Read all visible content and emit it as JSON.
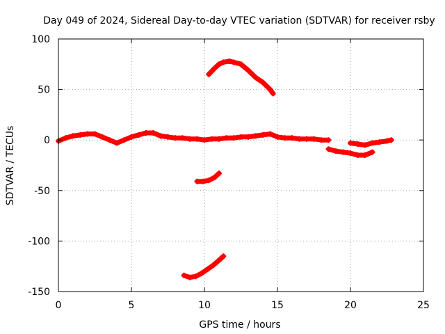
{
  "chart_data": {
    "type": "scatter",
    "title": "Day 049 of 2024, Sidereal Day-to-day VTEC variation (SDTVAR) for receiver rsby",
    "xlabel": "GPS time / hours",
    "ylabel": "SDTVAR / TECUs",
    "xlim": [
      0,
      25
    ],
    "ylim": [
      -150,
      100
    ],
    "xticks": [
      0,
      5,
      10,
      15,
      20,
      25
    ],
    "yticks": [
      -150,
      -100,
      -50,
      0,
      50,
      100
    ],
    "xtick_labels": [
      "0",
      "5",
      "10",
      "15",
      "20",
      "25"
    ],
    "ytick_labels": [
      "-150",
      "-100",
      "-50",
      "0",
      "50",
      "100"
    ],
    "grid": true,
    "marker": "plus",
    "series": [
      {
        "name": "main-near-zero",
        "color": "#ff0000",
        "x": [
          0,
          0.5,
          1,
          1.5,
          2,
          2.5,
          3,
          3.5,
          4,
          4.5,
          5,
          5.5,
          6,
          6.5,
          7,
          7.5,
          8,
          8.5,
          9,
          9.5,
          10,
          10.5,
          11,
          11.5,
          12,
          12.5,
          13,
          13.5,
          14,
          14.5,
          15,
          15.5,
          16,
          16.5,
          17,
          17.5,
          18,
          18.5
        ],
        "y": [
          -1,
          2,
          4,
          5,
          6,
          6,
          3,
          0,
          -3,
          0,
          3,
          5,
          7,
          7,
          4,
          3,
          2,
          2,
          1,
          1,
          0,
          1,
          1,
          2,
          2,
          3,
          3,
          4,
          5,
          6,
          3,
          2,
          2,
          1,
          1,
          1,
          0,
          0
        ]
      },
      {
        "name": "late-segment",
        "color": "#ff0000",
        "x": [
          18.5,
          19,
          19.5,
          20,
          20.5,
          21,
          21.5
        ],
        "y": [
          -9,
          -11,
          -12,
          -13,
          -15,
          -15,
          -12
        ]
      },
      {
        "name": "late-recovery",
        "color": "#ff0000",
        "x": [
          20,
          20.5,
          21,
          21.5,
          22,
          22.5,
          22.8
        ],
        "y": [
          -3,
          -4,
          -5,
          -3,
          -2,
          -1,
          0
        ]
      },
      {
        "name": "upper-arc",
        "color": "#ff0000",
        "x": [
          10.3,
          10.7,
          11,
          11.3,
          11.7,
          12,
          12.5,
          13,
          13.5,
          14,
          14.5,
          14.7
        ],
        "y": [
          65,
          71,
          75,
          77,
          78,
          77,
          75,
          69,
          62,
          57,
          50,
          46
        ]
      },
      {
        "name": "minus-forty-segment",
        "color": "#ff0000",
        "x": [
          9.5,
          9.9,
          10.3,
          10.7,
          11
        ],
        "y": [
          -41,
          -41,
          -40,
          -37,
          -33
        ]
      },
      {
        "name": "lower-arc",
        "color": "#ff0000",
        "x": [
          8.6,
          9,
          9.4,
          9.8,
          10.2,
          10.6,
          11,
          11.3
        ],
        "y": [
          -134,
          -136,
          -135,
          -132,
          -128,
          -124,
          -119,
          -115
        ]
      }
    ]
  }
}
